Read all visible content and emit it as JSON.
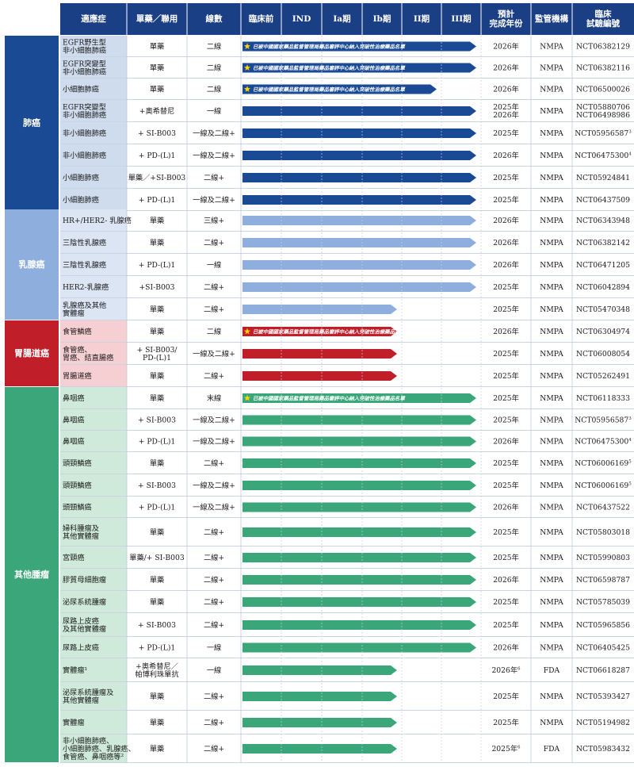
{
  "headers": {
    "indication": "適應症",
    "regimen": "單藥／聯用",
    "line": "線數",
    "preclinical": "臨床前",
    "ind": "IND",
    "phase1a": "Ia期",
    "phase1b": "Ib期",
    "phase2": "II期",
    "phase3": "III期",
    "completion": "預計\n完成年份",
    "regulator": "監管機構",
    "trial_id": "臨床\n試驗編號"
  },
  "colors": {
    "header": "#1b3f85",
    "lung": "#1b4a95",
    "lung_light": "#cfdcee",
    "breast": "#8eaede",
    "breast_light": "#dbe5f4",
    "gi": "#c01f2a",
    "gi_light": "#f6cfd2",
    "other": "#3aa67a",
    "other_light": "#cfeadb",
    "star": "#ffd300"
  },
  "btd_note": "已被中國國家藥品監督管理局藥品審評中心納入突破性治療藥品名單",
  "groups": [
    {
      "id": "lung",
      "name": "肺癌",
      "rows": [
        {
          "indication": [
            "EGFR野生型",
            "非小細胞肺癌"
          ],
          "regimen": [
            "單藥"
          ],
          "line": "二線",
          "stage": 6,
          "btd": true,
          "year": "2026年",
          "year_sup": "",
          "regulator": "NMPA",
          "trial": "NCT06382129",
          "trial_sup": ""
        },
        {
          "indication": [
            "EGFR突變型",
            "非小細胞肺癌"
          ],
          "regimen": [
            "單藥"
          ],
          "line": "二線",
          "stage": 6,
          "btd": true,
          "year": "2026年",
          "year_sup": "",
          "regulator": "NMPA",
          "trial": "NCT06382116",
          "trial_sup": ""
        },
        {
          "indication": [
            "小細胞肺癌"
          ],
          "regimen": [
            "單藥"
          ],
          "line": "二線",
          "stage": 5,
          "btd": true,
          "year": "2026年",
          "year_sup": "",
          "regulator": "NMPA",
          "trial": "NCT06500026",
          "trial_sup": ""
        },
        {
          "indication": [
            "EGFR突變型",
            "非小細胞肺癌"
          ],
          "regimen": [
            "+奧希替尼"
          ],
          "line": "一線",
          "stage": 6,
          "btd": false,
          "year": "2025年\n2026年",
          "year_sup": "",
          "regulator": "NMPA",
          "trial": "NCT05880706\nNCT06498986",
          "trial_sup": ""
        },
        {
          "indication": [
            "非小細胞肺癌"
          ],
          "regimen": [
            "+ SI-B003"
          ],
          "line": "一線及二線+",
          "stage": 6,
          "btd": false,
          "year": "2025年",
          "year_sup": "",
          "regulator": "NMPA",
          "trial": "NCT05956587",
          "trial_sup": "3"
        },
        {
          "indication": [
            "非小細胞肺癌"
          ],
          "regimen": [
            "+ PD-(L)1"
          ],
          "line": "一線及二線+",
          "stage": 6,
          "btd": false,
          "year": "2026年",
          "year_sup": "",
          "regulator": "NMPA",
          "trial": "NCT06475300",
          "trial_sup": "4"
        },
        {
          "indication": [
            "小細胞肺癌"
          ],
          "regimen": [
            "單藥／+SI-B003"
          ],
          "line": "二線+",
          "stage": 6,
          "btd": false,
          "year": "2025年",
          "year_sup": "",
          "regulator": "NMPA",
          "trial": "NCT05924841",
          "trial_sup": ""
        },
        {
          "indication": [
            "小細胞肺癌"
          ],
          "regimen": [
            "+ PD-(L)1"
          ],
          "line": "一線及二線+",
          "stage": 6,
          "btd": false,
          "year": "2025年",
          "year_sup": "",
          "regulator": "NMPA",
          "trial": "NCT06437509",
          "trial_sup": ""
        }
      ]
    },
    {
      "id": "breast",
      "name": "乳腺癌",
      "rows": [
        {
          "indication": [
            "HR+/HER2- 乳腺癌"
          ],
          "regimen": [
            "單藥"
          ],
          "line": "三線+",
          "stage": 6,
          "btd": false,
          "year": "2026年",
          "year_sup": "",
          "regulator": "NMPA",
          "trial": "NCT06343948",
          "trial_sup": ""
        },
        {
          "indication": [
            "三陰性乳腺癌"
          ],
          "regimen": [
            "單藥"
          ],
          "line": "二線+",
          "stage": 6,
          "btd": false,
          "year": "2026年",
          "year_sup": "",
          "regulator": "NMPA",
          "trial": "NCT06382142",
          "trial_sup": ""
        },
        {
          "indication": [
            "三陰性乳腺癌"
          ],
          "regimen": [
            "+ PD-(L)1"
          ],
          "line": "一線",
          "stage": 6,
          "btd": false,
          "year": "2026年",
          "year_sup": "",
          "regulator": "NMPA",
          "trial": "NCT06471205",
          "trial_sup": ""
        },
        {
          "indication": [
            "HER2-乳腺癌"
          ],
          "regimen": [
            "+SI-B003"
          ],
          "line": "二線+",
          "stage": 6,
          "btd": false,
          "year": "2025年",
          "year_sup": "",
          "regulator": "NMPA",
          "trial": "NCT06042894",
          "trial_sup": ""
        },
        {
          "indication": [
            "乳腺癌及其他",
            "實體瘤"
          ],
          "regimen": [
            "單藥"
          ],
          "line": "二線+",
          "stage": 4,
          "btd": false,
          "year": "2025年",
          "year_sup": "",
          "regulator": "NMPA",
          "trial": "NCT05470348",
          "trial_sup": ""
        }
      ]
    },
    {
      "id": "gi",
      "name": "胃腸道癌",
      "rows": [
        {
          "indication": [
            "食管鱗癌"
          ],
          "regimen": [
            "單藥"
          ],
          "line": "二線",
          "stage": 4,
          "btd": true,
          "year": "2026年",
          "year_sup": "",
          "regulator": "NMPA",
          "trial": "NCT06304974",
          "trial_sup": ""
        },
        {
          "indication": [
            "食管癌、",
            "胃癌、結直腸癌"
          ],
          "regimen": [
            "+ SI-B003/",
            "PD-(L)1"
          ],
          "line": "一線及二線+",
          "stage": 4,
          "btd": false,
          "year": "2025年",
          "year_sup": "",
          "regulator": "NMPA",
          "trial": "NCT06008054",
          "trial_sup": ""
        },
        {
          "indication": [
            "胃腸道癌"
          ],
          "regimen": [
            "單藥"
          ],
          "line": "二線+",
          "stage": 4,
          "btd": false,
          "year": "2025年",
          "year_sup": "",
          "regulator": "NMPA",
          "trial": "NCT05262491",
          "trial_sup": ""
        }
      ]
    },
    {
      "id": "other",
      "name": "其他腫瘤",
      "rows": [
        {
          "indication": [
            "鼻咽癌"
          ],
          "regimen": [
            "單藥"
          ],
          "line": "末線",
          "stage": 6,
          "btd": true,
          "year": "2025年",
          "year_sup": "",
          "regulator": "NMPA",
          "trial": "NCT06118333",
          "trial_sup": ""
        },
        {
          "indication": [
            "鼻咽癌"
          ],
          "regimen": [
            "+ SI-B003"
          ],
          "line": "一線及二線+",
          "stage": 6,
          "btd": false,
          "year": "2025年",
          "year_sup": "",
          "regulator": "NMPA",
          "trial": "NCT05956587",
          "trial_sup": "3"
        },
        {
          "indication": [
            "鼻咽癌"
          ],
          "regimen": [
            "+ PD-(L)1"
          ],
          "line": "一線及二線+",
          "stage": 6,
          "btd": false,
          "year": "2026年",
          "year_sup": "",
          "regulator": "NMPA",
          "trial": "NCT06475300",
          "trial_sup": "4"
        },
        {
          "indication": [
            "頭頸鱗癌"
          ],
          "regimen": [
            "單藥"
          ],
          "line": "二線+",
          "stage": 6,
          "btd": false,
          "year": "2025年",
          "year_sup": "",
          "regulator": "NMPA",
          "trial": "NCT06006169",
          "trial_sup": "5"
        },
        {
          "indication": [
            "頭頸鱗癌"
          ],
          "regimen": [
            "+ SI-B003"
          ],
          "line": "一線及二線+",
          "stage": 6,
          "btd": false,
          "year": "2025年",
          "year_sup": "",
          "regulator": "NMPA",
          "trial": "NCT06006169",
          "trial_sup": "5"
        },
        {
          "indication": [
            "頭頸鱗癌"
          ],
          "regimen": [
            "+ PD-(L)1"
          ],
          "line": "一線及二線+",
          "stage": 6,
          "btd": false,
          "year": "2026年",
          "year_sup": "",
          "regulator": "NMPA",
          "trial": "NCT06437522",
          "trial_sup": ""
        },
        {
          "indication": [
            "婦科腫瘤及",
            "其他實體瘤"
          ],
          "regimen": [
            "單藥"
          ],
          "line": "二線+",
          "stage": 6,
          "btd": false,
          "year": "2025年",
          "year_sup": "",
          "regulator": "NMPA",
          "trial": "NCT05803018",
          "trial_sup": ""
        },
        {
          "indication": [
            "宮頸癌"
          ],
          "regimen": [
            "單藥/+ SI-B003"
          ],
          "line": "二線+",
          "stage": 6,
          "btd": false,
          "year": "2025年",
          "year_sup": "",
          "regulator": "NMPA",
          "trial": "NCT05990803",
          "trial_sup": ""
        },
        {
          "indication": [
            "膠質母細胞瘤"
          ],
          "regimen": [
            "單藥"
          ],
          "line": "二線+",
          "stage": 6,
          "btd": false,
          "year": "2026年",
          "year_sup": "",
          "regulator": "NMPA",
          "trial": "NCT06598787",
          "trial_sup": ""
        },
        {
          "indication": [
            "泌尿系統腫瘤"
          ],
          "regimen": [
            "單藥"
          ],
          "line": "二線+",
          "stage": 6,
          "btd": false,
          "year": "2025年",
          "year_sup": "",
          "regulator": "NMPA",
          "trial": "NCT05785039",
          "trial_sup": ""
        },
        {
          "indication": [
            "尿路上皮癌",
            "及其他實體瘤"
          ],
          "regimen": [
            "+ SI-B003"
          ],
          "line": "二線+",
          "stage": 6,
          "btd": false,
          "year": "2025年",
          "year_sup": "",
          "regulator": "NMPA",
          "trial": "NCT05965856",
          "trial_sup": ""
        },
        {
          "indication": [
            "尿路上皮癌"
          ],
          "regimen": [
            "+ PD-(L)1"
          ],
          "line": "一線",
          "stage": 6,
          "btd": false,
          "year": "2026年",
          "year_sup": "",
          "regulator": "NMPA",
          "trial": "NCT06405425",
          "trial_sup": ""
        },
        {
          "indication": [
            "實體瘤¹"
          ],
          "regimen": [
            "+奧希替尼／",
            "帕博利珠單抗"
          ],
          "line": "一線",
          "stage": 4,
          "btd": false,
          "year": "2026年",
          "year_sup": "6",
          "regulator": "FDA",
          "trial": "NCT06618287",
          "trial_sup": ""
        },
        {
          "indication": [
            "泌尿系統腫瘤及",
            "其他實體瘤"
          ],
          "regimen": [
            "單藥"
          ],
          "line": "二線+",
          "stage": 4,
          "btd": false,
          "year": "2025年",
          "year_sup": "",
          "regulator": "NMPA",
          "trial": "NCT05393427",
          "trial_sup": ""
        },
        {
          "indication": [
            "實體瘤"
          ],
          "regimen": [
            "單藥"
          ],
          "line": "二線+",
          "stage": 4,
          "btd": false,
          "year": "2025年",
          "year_sup": "",
          "regulator": "NMPA",
          "trial": "NCT05194982",
          "trial_sup": ""
        },
        {
          "indication": [
            "非小細胞肺癌、",
            "小細胞肺癌、乳腺癌、",
            "食管癌、鼻咽癌等²"
          ],
          "regimen": [
            "單藥"
          ],
          "line": "二線+",
          "stage": 4,
          "btd": false,
          "year": "2025年",
          "year_sup": "6",
          "regulator": "FDA",
          "trial": "NCT05983432",
          "trial_sup": ""
        }
      ]
    }
  ]
}
